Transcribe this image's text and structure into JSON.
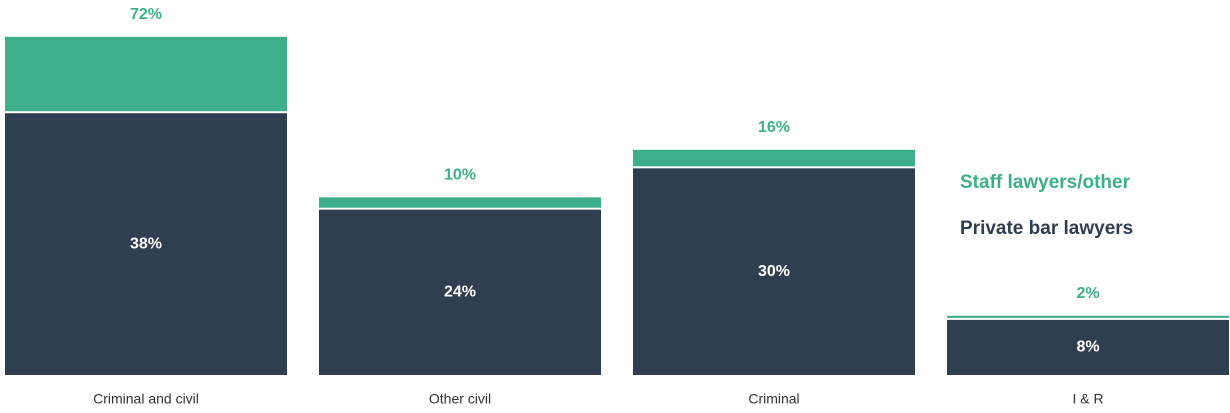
{
  "chart_data": {
    "type": "stacked_bar",
    "categories": [
      "Criminal and civil",
      "Other civil",
      "Criminal",
      "I & R"
    ],
    "series": [
      {
        "name": "Private bar lawyers",
        "color": "#2f3e50",
        "values": [
          38,
          24,
          30,
          8
        ]
      },
      {
        "name": "Staff lawyers/other",
        "color": "#3daf8a",
        "values": [
          72,
          10,
          16,
          2
        ],
        "axis": "y2"
      }
    ],
    "ylim": [
      0,
      54
    ],
    "y2lim": [
      0,
      360
    ],
    "legend": "right"
  }
}
